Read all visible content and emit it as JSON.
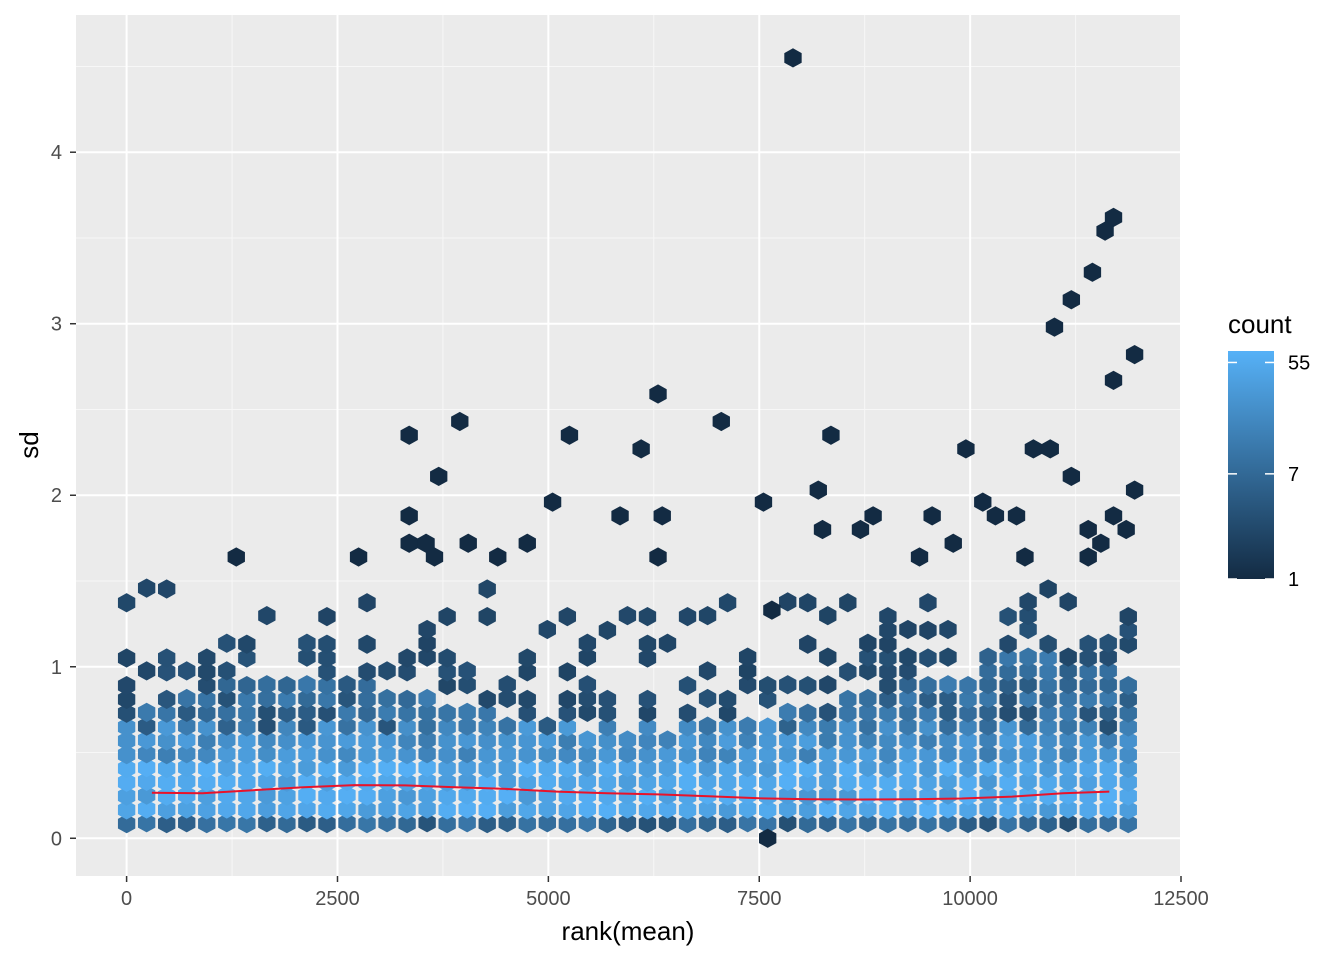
{
  "chart_data": {
    "type": "hexbin",
    "xlabel": "rank(mean)",
    "ylabel": "sd",
    "xlim": [
      -600,
      12500
    ],
    "ylim": [
      -0.22,
      4.8
    ],
    "x_ticks": [
      0,
      2500,
      5000,
      7500,
      10000,
      12500
    ],
    "x_tick_labels": [
      "0",
      "2500",
      "5000",
      "7500",
      "10000",
      "12500"
    ],
    "y_ticks": [
      0,
      1,
      2,
      3,
      4
    ],
    "y_tick_labels": [
      "0",
      "1",
      "2",
      "3",
      "4"
    ],
    "grid": true,
    "legend": {
      "title": "count",
      "position": "right",
      "scale": "log",
      "range": [
        1,
        68
      ],
      "ticks": [
        1,
        7,
        55
      ],
      "tick_labels": [
        "1",
        "7",
        "55"
      ],
      "color_low": "#132B43",
      "color_high": "#56B1F7"
    },
    "hex_bins": {
      "x_start": 0,
      "x_step": 237.5,
      "y_start": 0,
      "y_step": 0.0805,
      "x_max": 12000,
      "col_count": 51,
      "note_units": "x in rank units, y in sd units"
    },
    "outliers": [
      {
        "x": 7900,
        "y": 4.55
      },
      {
        "x": 11700,
        "y": 3.62
      },
      {
        "x": 11600,
        "y": 3.54
      },
      {
        "x": 11450,
        "y": 3.3
      },
      {
        "x": 11200,
        "y": 3.14
      },
      {
        "x": 11000,
        "y": 2.98
      },
      {
        "x": 11950,
        "y": 2.82
      },
      {
        "x": 11700,
        "y": 2.67
      },
      {
        "x": 6300,
        "y": 2.59
      },
      {
        "x": 3950,
        "y": 2.43
      },
      {
        "x": 7050,
        "y": 2.43
      },
      {
        "x": 3350,
        "y": 2.35
      },
      {
        "x": 5250,
        "y": 2.35
      },
      {
        "x": 8350,
        "y": 2.35
      },
      {
        "x": 6100,
        "y": 2.27
      },
      {
        "x": 9950,
        "y": 2.27
      },
      {
        "x": 10750,
        "y": 2.27
      },
      {
        "x": 10950,
        "y": 2.27
      },
      {
        "x": 3700,
        "y": 2.11
      },
      {
        "x": 11200,
        "y": 2.11
      },
      {
        "x": 8200,
        "y": 2.03
      },
      {
        "x": 11950,
        "y": 2.03
      },
      {
        "x": 5050,
        "y": 1.96
      },
      {
        "x": 7550,
        "y": 1.96
      },
      {
        "x": 10150,
        "y": 1.96
      },
      {
        "x": 3350,
        "y": 1.88
      },
      {
        "x": 5850,
        "y": 1.88
      },
      {
        "x": 6350,
        "y": 1.88
      },
      {
        "x": 8850,
        "y": 1.88
      },
      {
        "x": 9550,
        "y": 1.88
      },
      {
        "x": 10300,
        "y": 1.88
      },
      {
        "x": 10550,
        "y": 1.88
      },
      {
        "x": 11700,
        "y": 1.88
      },
      {
        "x": 8250,
        "y": 1.8
      },
      {
        "x": 8700,
        "y": 1.8
      },
      {
        "x": 11400,
        "y": 1.8
      },
      {
        "x": 11850,
        "y": 1.8
      },
      {
        "x": 3350,
        "y": 1.72
      },
      {
        "x": 3550,
        "y": 1.72
      },
      {
        "x": 4050,
        "y": 1.72
      },
      {
        "x": 4750,
        "y": 1.72
      },
      {
        "x": 9800,
        "y": 1.72
      },
      {
        "x": 11550,
        "y": 1.72
      },
      {
        "x": 1300,
        "y": 1.64
      },
      {
        "x": 2750,
        "y": 1.64
      },
      {
        "x": 3650,
        "y": 1.64
      },
      {
        "x": 4400,
        "y": 1.64
      },
      {
        "x": 6300,
        "y": 1.64
      },
      {
        "x": 9400,
        "y": 1.64
      },
      {
        "x": 10650,
        "y": 1.64
      },
      {
        "x": 11400,
        "y": 1.64
      },
      {
        "x": 7650,
        "y": 1.33
      },
      {
        "x": 7600,
        "y": 0.0
      }
    ],
    "smooth_line": {
      "color": "#e8132a",
      "points": [
        {
          "x": 300,
          "y": 0.265
        },
        {
          "x": 900,
          "y": 0.262
        },
        {
          "x": 1500,
          "y": 0.28
        },
        {
          "x": 2100,
          "y": 0.298
        },
        {
          "x": 2700,
          "y": 0.31
        },
        {
          "x": 3300,
          "y": 0.308
        },
        {
          "x": 3900,
          "y": 0.298
        },
        {
          "x": 4500,
          "y": 0.288
        },
        {
          "x": 5100,
          "y": 0.272
        },
        {
          "x": 5700,
          "y": 0.262
        },
        {
          "x": 6300,
          "y": 0.256
        },
        {
          "x": 6900,
          "y": 0.245
        },
        {
          "x": 7500,
          "y": 0.233
        },
        {
          "x": 8100,
          "y": 0.228
        },
        {
          "x": 8700,
          "y": 0.226
        },
        {
          "x": 9300,
          "y": 0.228
        },
        {
          "x": 9900,
          "y": 0.232
        },
        {
          "x": 10500,
          "y": 0.243
        },
        {
          "x": 11100,
          "y": 0.262
        },
        {
          "x": 11650,
          "y": 0.272
        }
      ]
    }
  }
}
